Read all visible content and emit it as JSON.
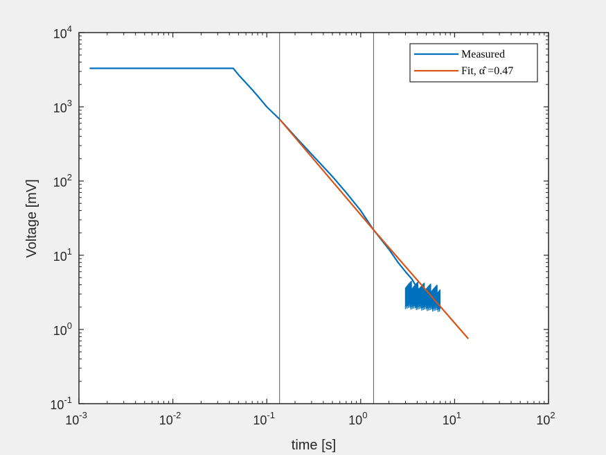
{
  "chart_data": {
    "type": "line",
    "xlabel": "time [s]",
    "ylabel": "Voltage [mV]",
    "xscale": "log",
    "yscale": "log",
    "xlim": [
      0.001,
      100
    ],
    "ylim": [
      0.1,
      10000
    ],
    "x_ticks": [
      "10^-3",
      "10^-2",
      "10^-1",
      "10^0",
      "10^1",
      "10^2"
    ],
    "y_ticks": [
      "10^-1",
      "10^0",
      "10^1",
      "10^2",
      "10^3",
      "10^4"
    ],
    "grid": false,
    "legend_position": "top-right",
    "vertical_lines": [
      0.137,
      1.37
    ],
    "series": [
      {
        "name": "Measured",
        "color": "#0072BD",
        "x": [
          0.0013,
          0.005,
          0.01,
          0.02,
          0.03,
          0.04,
          0.044,
          0.05,
          0.06,
          0.07,
          0.08,
          0.1,
          0.12,
          0.137,
          0.2,
          0.3,
          0.5,
          0.7,
          1.0,
          1.37,
          2.0,
          2.5,
          3.0,
          3.5,
          4.0,
          5.0,
          6.0,
          7.0
        ],
        "y": [
          3300,
          3300,
          3300,
          3300,
          3300,
          3300,
          3300,
          2700,
          2100,
          1700,
          1400,
          1000,
          800,
          680,
          400,
          230,
          115,
          70,
          40,
          22,
          12,
          8,
          6,
          4.8,
          3.6,
          3.1,
          2.8,
          2.6
        ],
        "noise": {
          "x_from": 3.0,
          "x_to": 7.0,
          "y_low": 1.9,
          "y_high": 4.3
        }
      },
      {
        "name": "Fit, α̂ =0.47",
        "color": "#D95319",
        "x": [
          0.137,
          1.37,
          14
        ],
        "y": [
          680,
          22,
          0.75
        ]
      }
    ]
  }
}
